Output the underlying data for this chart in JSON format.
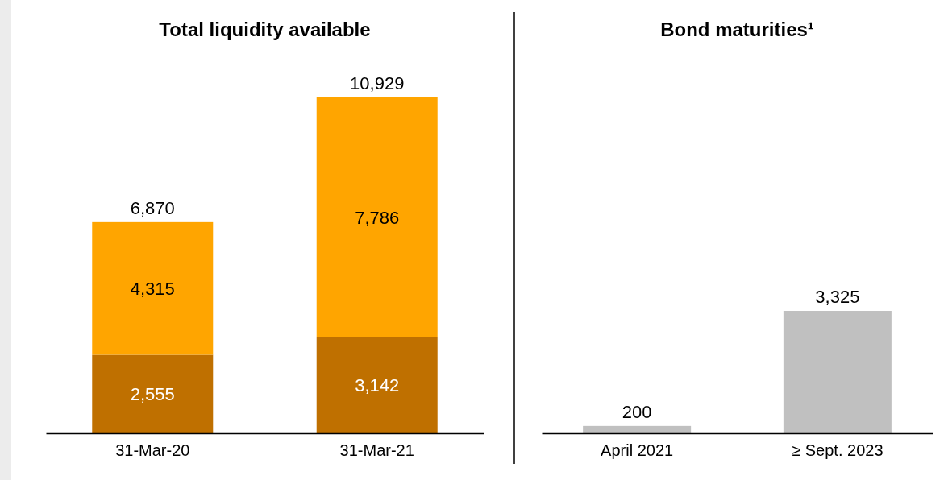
{
  "chart_data": [
    {
      "type": "bar",
      "title": "Total liquidity available",
      "categories": [
        "31-Mar-20",
        "31-Mar-21"
      ],
      "stacked": true,
      "series": [
        {
          "color": "#bf7000",
          "values": [
            2555,
            3142
          ],
          "value_labels": [
            "2,555",
            "3,142"
          ]
        },
        {
          "color": "#ffa500",
          "values": [
            4315,
            7786
          ],
          "value_labels": [
            "4,315",
            "7,786"
          ]
        }
      ],
      "totals": [
        "6,870",
        "10,929"
      ]
    },
    {
      "type": "bar",
      "title": "Bond maturities¹",
      "categories": [
        "April 2021",
        "≥ Sept. 2023"
      ],
      "series": [
        {
          "color": "#c0c0c0",
          "values": [
            200,
            3325
          ],
          "value_labels": [
            "200",
            "3,325"
          ]
        }
      ]
    }
  ]
}
